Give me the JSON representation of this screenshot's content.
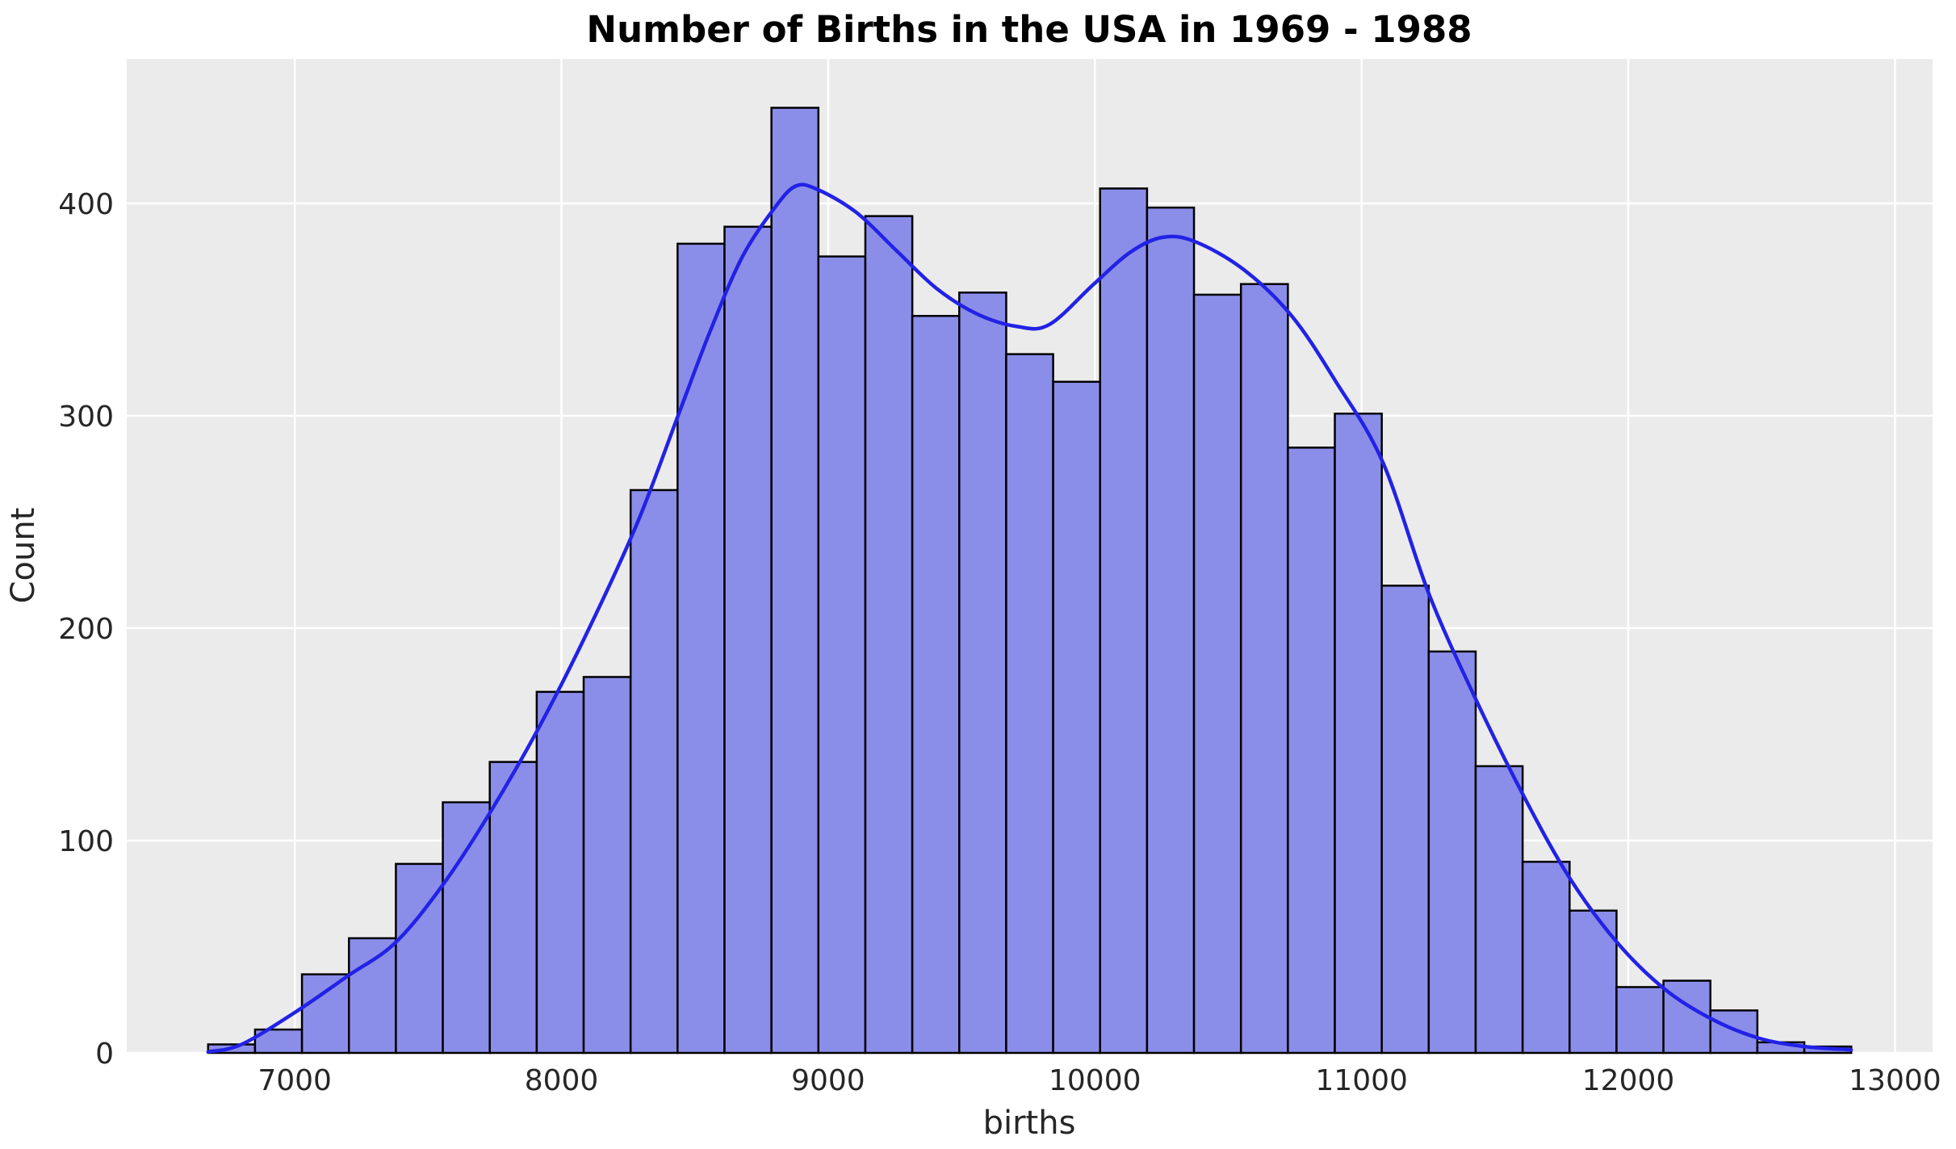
{
  "chart_data": {
    "type": "bar",
    "subtype": "histogram-with-kde",
    "title": "Number of Births in the USA in 1969 - 1988",
    "xlabel": "births",
    "ylabel": "Count",
    "xlim": [
      6370,
      13141
    ],
    "ylim": [
      0,
      468
    ],
    "x_ticks": [
      7000,
      8000,
      9000,
      10000,
      11000,
      12000,
      13000
    ],
    "y_ticks": [
      0,
      100,
      200,
      300,
      400
    ],
    "grid": "on",
    "legend": "none",
    "bins": {
      "start": 6675,
      "width": 176.03,
      "count_of_bins": 35,
      "counts": [
        4,
        11,
        37,
        54,
        89,
        118,
        137,
        170,
        177,
        265,
        381,
        389,
        445,
        375,
        394,
        347,
        358,
        329,
        316,
        407,
        398,
        357,
        362,
        285,
        301,
        220,
        189,
        135,
        90,
        67,
        31,
        34,
        20,
        5,
        3
      ]
    },
    "kde_curve": {
      "points": [
        [
          6675,
          0.5
        ],
        [
          6800,
          4
        ],
        [
          7000,
          19
        ],
        [
          7196,
          36
        ],
        [
          7378,
          52
        ],
        [
          7560,
          80
        ],
        [
          7741,
          115
        ],
        [
          7923,
          155
        ],
        [
          8104,
          200
        ],
        [
          8286,
          250
        ],
        [
          8437,
          300
        ],
        [
          8558,
          340
        ],
        [
          8679,
          375
        ],
        [
          8800,
          398
        ],
        [
          8876,
          408
        ],
        [
          8952,
          407
        ],
        [
          9103,
          396
        ],
        [
          9254,
          378
        ],
        [
          9406,
          360
        ],
        [
          9557,
          348
        ],
        [
          9709,
          342
        ],
        [
          9830,
          343
        ],
        [
          9996,
          362
        ],
        [
          10133,
          377
        ],
        [
          10254,
          384
        ],
        [
          10375,
          382
        ],
        [
          10556,
          369
        ],
        [
          10738,
          347
        ],
        [
          10904,
          316
        ],
        [
          11080,
          278
        ],
        [
          11253,
          216
        ],
        [
          11434,
          165
        ],
        [
          11616,
          119
        ],
        [
          11782,
          82
        ],
        [
          11958,
          52
        ],
        [
          12137,
          30
        ],
        [
          12312,
          16
        ],
        [
          12488,
          7
        ],
        [
          12660,
          3
        ],
        [
          12836,
          1.5
        ]
      ]
    },
    "colors": {
      "figure_background": "#ffffff",
      "plot_background": "#ebebeb",
      "gridline": "#ffffff",
      "bar_fill": "#8b8ee9",
      "bar_edge": "#000000",
      "kde_line": "#2222e6",
      "tick_text": "#262626",
      "title_text": "#000000"
    }
  }
}
